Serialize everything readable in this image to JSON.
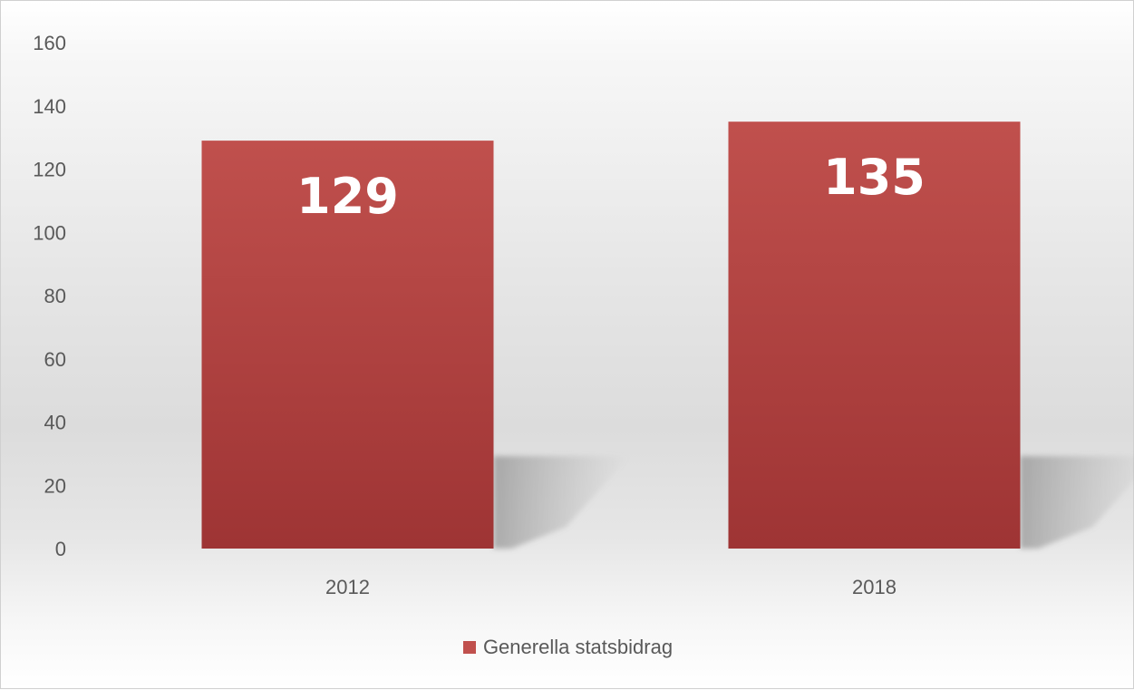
{
  "colors": {
    "bar_top": "#c0504d",
    "bar_bottom": "#9e3434",
    "tick_text": "#595959"
  },
  "chart_data": {
    "type": "bar",
    "title": "",
    "xlabel": "",
    "ylabel": "",
    "categories": [
      "2012",
      "2018"
    ],
    "series": [
      {
        "name": "Generella statsbidrag",
        "values": [
          129,
          135
        ]
      }
    ],
    "data_labels": [
      "129",
      "135"
    ],
    "ylim": [
      0,
      160
    ],
    "yticks": [
      "0",
      "20",
      "40",
      "60",
      "80",
      "100",
      "120",
      "140",
      "160"
    ],
    "grid": false,
    "legend_position": "bottom"
  }
}
